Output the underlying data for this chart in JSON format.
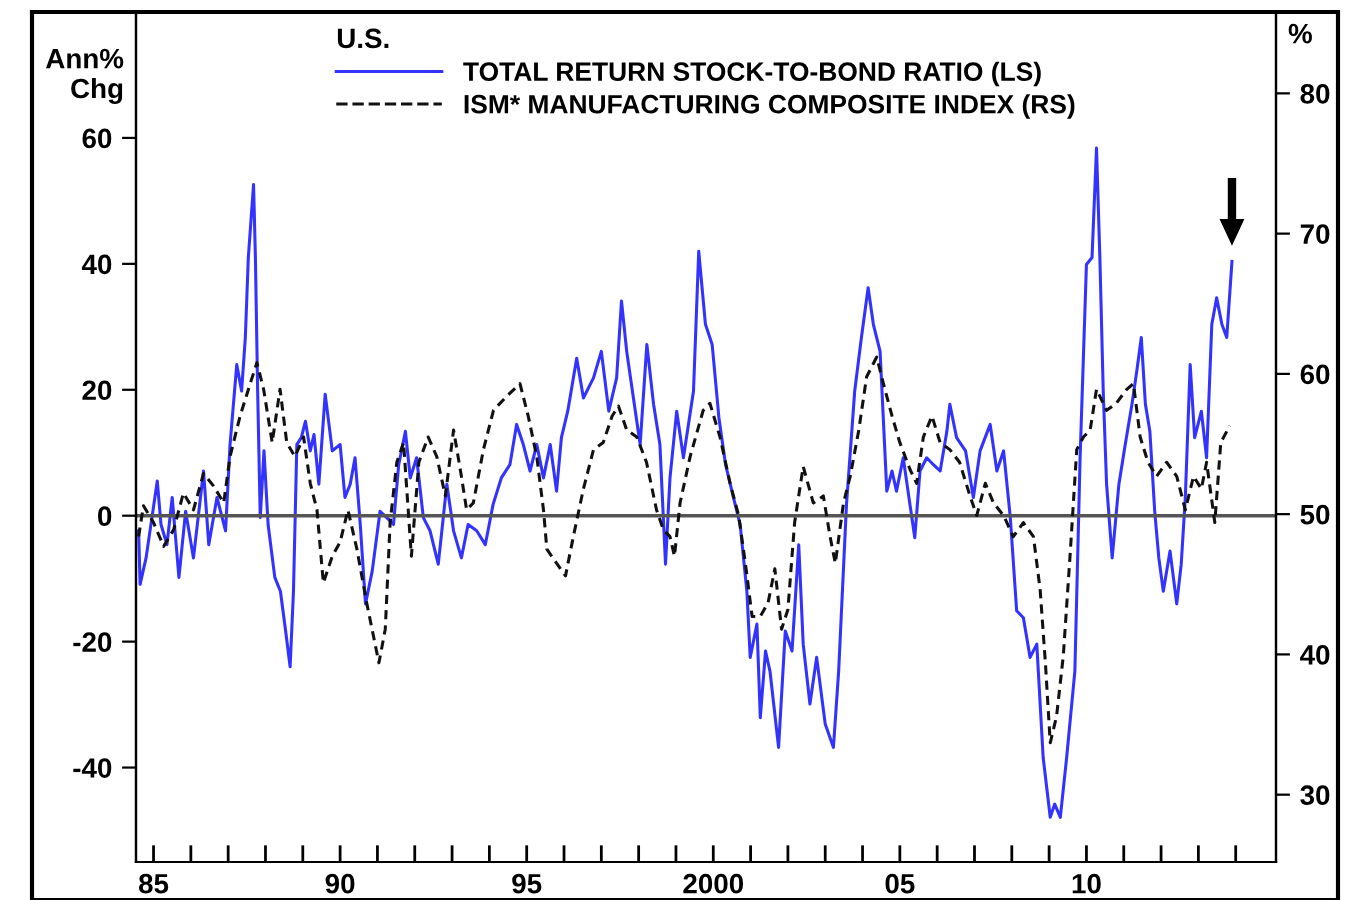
{
  "chart_data": {
    "type": "line",
    "legend_title": "U.S.",
    "ylabel": "Ann%\nChg",
    "y2label": "%",
    "legend": "top",
    "grid": false,
    "xlim": [
      1984.53,
      2015.08
    ],
    "xticks": [
      {
        "value": 1985,
        "label": "85"
      },
      {
        "value": 1986,
        "label": null
      },
      {
        "value": 1987,
        "label": null
      },
      {
        "value": 1988,
        "label": null
      },
      {
        "value": 1989,
        "label": null
      },
      {
        "value": 1990,
        "label": "90"
      },
      {
        "value": 1991,
        "label": null
      },
      {
        "value": 1992,
        "label": null
      },
      {
        "value": 1993,
        "label": null
      },
      {
        "value": 1994,
        "label": null
      },
      {
        "value": 1995,
        "label": "95"
      },
      {
        "value": 1996,
        "label": null
      },
      {
        "value": 1997,
        "label": null
      },
      {
        "value": 1998,
        "label": null
      },
      {
        "value": 1999,
        "label": null
      },
      2000,
      {
        "value": 2001,
        "label": null
      },
      {
        "value": 2002,
        "label": null
      },
      {
        "value": 2003,
        "label": null
      },
      {
        "value": 2004,
        "label": null
      },
      {
        "value": 2005,
        "label": "05"
      },
      {
        "value": 2006,
        "label": null
      },
      {
        "value": 2007,
        "label": null
      },
      {
        "value": 2008,
        "label": null
      },
      {
        "value": 2009,
        "label": null
      },
      {
        "value": 2010,
        "label": "10"
      },
      {
        "value": 2011,
        "label": null
      },
      {
        "value": 2012,
        "label": null
      },
      {
        "value": 2013,
        "label": null
      },
      {
        "value": 2014,
        "label": null
      }
    ],
    "ylim": [
      -55,
      80
    ],
    "yticks": [
      -40,
      -20,
      0,
      20,
      40,
      60
    ],
    "y2lim": [
      25.2,
      85.8
    ],
    "y2ticks": [
      30,
      40,
      50,
      60,
      70,
      80
    ],
    "ref_lines": [
      {
        "axis": "y",
        "value": 0,
        "color": "#555555"
      }
    ],
    "series": [
      {
        "name": "TOTAL RETURN STOCK-TO-BOND RATIO (LS)",
        "color": "#3333ff",
        "line_style": "solid",
        "x": [
          1984.6,
          1984.64,
          1984.8,
          1985.1,
          1985.2,
          1985.36,
          1985.5,
          1985.68,
          1985.86,
          1986.07,
          1986.34,
          1986.48,
          1986.7,
          1986.93,
          1987.05,
          1987.23,
          1987.36,
          1987.46,
          1987.54,
          1987.68,
          1987.73,
          1987.79,
          1987.86,
          1987.96,
          1988.07,
          1988.25,
          1988.4,
          1988.54,
          1988.66,
          1988.75,
          1988.84,
          1988.96,
          1989.07,
          1989.2,
          1989.3,
          1989.43,
          1989.6,
          1989.79,
          1990.0,
          1990.13,
          1990.27,
          1990.4,
          1990.54,
          1990.68,
          1990.86,
          1991.07,
          1991.25,
          1991.43,
          1991.57,
          1991.75,
          1991.88,
          1992.05,
          1992.23,
          1992.41,
          1992.63,
          1992.86,
          1993.04,
          1993.25,
          1993.43,
          1993.66,
          1993.89,
          1994.1,
          1994.32,
          1994.55,
          1994.73,
          1994.91,
          1995.09,
          1995.27,
          1995.45,
          1995.63,
          1995.8,
          1995.93,
          1996.1,
          1996.34,
          1996.52,
          1996.79,
          1997.0,
          1997.2,
          1997.41,
          1997.54,
          1997.68,
          1997.86,
          1998.04,
          1998.22,
          1998.4,
          1998.57,
          1998.72,
          1998.84,
          1999.02,
          1999.2,
          1999.47,
          1999.61,
          1999.79,
          1999.97,
          2000.15,
          2000.33,
          2000.54,
          2000.72,
          2000.9,
          2000.99,
          2001.17,
          2001.26,
          2001.4,
          2001.52,
          2001.75,
          2001.93,
          2002.11,
          2002.29,
          2002.41,
          2002.59,
          2002.77,
          2003.0,
          2003.22,
          2003.36,
          2003.57,
          2003.79,
          2003.97,
          2004.15,
          2004.29,
          2004.47,
          2004.65,
          2004.79,
          2004.91,
          2005.09,
          2005.27,
          2005.4,
          2005.54,
          2005.72,
          2005.9,
          2006.08,
          2006.26,
          2006.34,
          2006.52,
          2006.76,
          2006.97,
          2007.15,
          2007.42,
          2007.6,
          2007.78,
          2007.96,
          2008.13,
          2008.31,
          2008.49,
          2008.67,
          2008.84,
          2009.03,
          2009.15,
          2009.3,
          2009.47,
          2009.69,
          2009.83,
          2010.0,
          2010.15,
          2010.27,
          2010.36,
          2010.45,
          2010.54,
          2010.69,
          2010.87,
          2011.04,
          2011.22,
          2011.35,
          2011.47,
          2011.58,
          2011.7,
          2011.83,
          2011.94,
          2012.06,
          2012.24,
          2012.42,
          2012.54,
          2012.65,
          2012.78,
          2012.9,
          2013.08,
          2013.22,
          2013.36,
          2013.49,
          2013.63,
          2013.76,
          2013.9
        ],
        "values": [
          -2.4,
          -10.9,
          -6.7,
          5.5,
          -1.4,
          -4.6,
          2.9,
          -9.8,
          0.7,
          -6.7,
          7.1,
          -4.6,
          2.9,
          -2.4,
          11.3,
          24,
          19.8,
          28.3,
          41,
          52.6,
          41,
          19.8,
          -0.3,
          10.3,
          -1.4,
          -9.8,
          -12,
          -18.3,
          -24,
          -12,
          11.3,
          12.4,
          15,
          10.3,
          12.9,
          5,
          19.3,
          10.3,
          11.3,
          2.9,
          5,
          9.2,
          -1.4,
          -14,
          -8.8,
          0.7,
          -0.3,
          -1.4,
          8.1,
          13.4,
          6,
          9.2,
          -0.3,
          -2.4,
          -7.7,
          5,
          -2.4,
          -6.7,
          -1.4,
          -2.4,
          -4.6,
          1.8,
          6,
          8.1,
          14.5,
          11.3,
          7.1,
          11.3,
          6,
          11.3,
          3.9,
          12.4,
          16.6,
          25,
          18.7,
          21.9,
          26.1,
          16.6,
          21.9,
          34.1,
          26.1,
          18.7,
          11.3,
          27.2,
          17.7,
          11.3,
          -7.7,
          6,
          16.6,
          9.2,
          19.8,
          42,
          30.4,
          27.2,
          15.6,
          8.1,
          2.9,
          -1.4,
          -12,
          -22.5,
          -17.2,
          -32.1,
          -21.5,
          -24.7,
          -36.8,
          -18.3,
          -21.5,
          -4.6,
          -20.4,
          -29.9,
          -22.5,
          -33.1,
          -36.8,
          -24.7,
          1.8,
          19.8,
          28.3,
          36.2,
          30.4,
          26.1,
          3.9,
          7.1,
          3.9,
          9.2,
          1.8,
          -3.5,
          7.1,
          9.2,
          8.1,
          7.1,
          13.4,
          17.7,
          12.4,
          10.3,
          2.9,
          10.3,
          14.5,
          7.1,
          10.3,
          -0.3,
          -15.1,
          -16.2,
          -22.5,
          -20.4,
          -38.4,
          -47.9,
          -45.8,
          -47.9,
          -38.4,
          -24.7,
          9.2,
          39.9,
          41,
          58.4,
          41,
          19.8,
          5,
          -6.7,
          5,
          11.3,
          17.7,
          23,
          28.3,
          17.7,
          13.4,
          0.7,
          -6.7,
          -12,
          -5.6,
          -14,
          -7.7,
          2.9,
          24,
          12.4,
          16.6,
          9.2,
          30.4,
          34.6,
          30.4,
          28.3,
          40.4
        ]
      },
      {
        "name": "ISM* MANUFACTURING COMPOSITE INDEX (RS)",
        "color": "#111111",
        "line_style": "dashed",
        "axis": "y2",
        "x": [
          1984.6,
          1984.73,
          1985.0,
          1985.27,
          1985.54,
          1985.8,
          1986.07,
          1986.34,
          1986.61,
          1986.88,
          1987.05,
          1987.32,
          1987.59,
          1987.77,
          1987.95,
          1988.18,
          1988.39,
          1988.57,
          1988.79,
          1989.02,
          1989.2,
          1989.38,
          1989.55,
          1989.79,
          1990.0,
          1990.21,
          1990.45,
          1990.71,
          1991.04,
          1991.21,
          1991.34,
          1991.52,
          1991.7,
          1991.91,
          1992.11,
          1992.36,
          1992.59,
          1992.82,
          1993.04,
          1993.25,
          1993.39,
          1993.57,
          1993.84,
          1994.11,
          1994.46,
          1994.82,
          1995.04,
          1995.27,
          1995.45,
          1995.54,
          1995.8,
          1996.04,
          1996.25,
          1996.52,
          1996.79,
          1997.05,
          1997.29,
          1997.46,
          1997.68,
          1997.95,
          1998.21,
          1998.48,
          1998.66,
          1998.84,
          1998.96,
          1999.11,
          1999.38,
          1999.73,
          1999.91,
          2000.18,
          2000.45,
          2000.68,
          2000.86,
          2001.04,
          2001.26,
          2001.47,
          2001.65,
          2001.83,
          2002.0,
          2002.18,
          2002.41,
          2002.68,
          2002.95,
          2003.13,
          2003.27,
          2003.49,
          2003.67,
          2003.9,
          2004.11,
          2004.38,
          2004.56,
          2004.79,
          2005.0,
          2005.27,
          2005.45,
          2005.63,
          2005.86,
          2006.08,
          2006.34,
          2006.6,
          2006.88,
          2007.06,
          2007.29,
          2007.51,
          2007.78,
          2008.04,
          2008.31,
          2008.58,
          2008.76,
          2008.9,
          2009.03,
          2009.2,
          2009.38,
          2009.56,
          2009.74,
          2009.92,
          2010.1,
          2010.27,
          2010.54,
          2010.8,
          2011.08,
          2011.26,
          2011.44,
          2011.65,
          2011.88,
          2012.15,
          2012.42,
          2012.65,
          2012.87,
          2013.08,
          2013.22,
          2013.44,
          2013.6,
          2013.84
        ],
        "values": [
          48.4,
          50.6,
          49.4,
          47.7,
          48.9,
          51.5,
          50.3,
          52.9,
          52,
          50.8,
          54.1,
          57,
          59.3,
          60.8,
          58.9,
          55.1,
          58.9,
          55.1,
          54.1,
          55.5,
          52.2,
          50.3,
          45.1,
          47,
          48,
          50.3,
          47.5,
          43.7,
          39.4,
          41.8,
          49.4,
          53.7,
          55.1,
          47,
          53.7,
          55.5,
          54.1,
          51.3,
          56,
          52.7,
          50.3,
          50.8,
          54.6,
          57.4,
          58.4,
          59.3,
          57,
          54.1,
          50.3,
          47.5,
          46.5,
          45.6,
          48.4,
          51.8,
          54.6,
          55.1,
          57,
          57.7,
          56,
          55.5,
          53.7,
          50.3,
          48.9,
          48.4,
          47,
          50.8,
          54.1,
          57.4,
          57.9,
          55.5,
          52.2,
          49.9,
          46.5,
          42.7,
          42.7,
          43.7,
          46.1,
          41.8,
          43.2,
          49.4,
          53.4,
          50.8,
          51.3,
          48.4,
          46.5,
          50.8,
          52.7,
          56,
          59.8,
          61.2,
          59.3,
          57,
          55.1,
          53.2,
          52.2,
          55.5,
          57,
          55.1,
          54.6,
          53.7,
          51.3,
          49.9,
          52.2,
          50.8,
          49.9,
          48.4,
          49.4,
          48.4,
          44.6,
          39.4,
          33.7,
          35.6,
          39.9,
          47,
          54.6,
          55.5,
          56,
          58.9,
          57.4,
          57.9,
          58.9,
          59.3,
          55.5,
          53.7,
          52.7,
          53.7,
          52.7,
          50.3,
          52.7,
          51.8,
          53.7,
          49.4,
          55.1,
          56.3
        ]
      }
    ]
  }
}
